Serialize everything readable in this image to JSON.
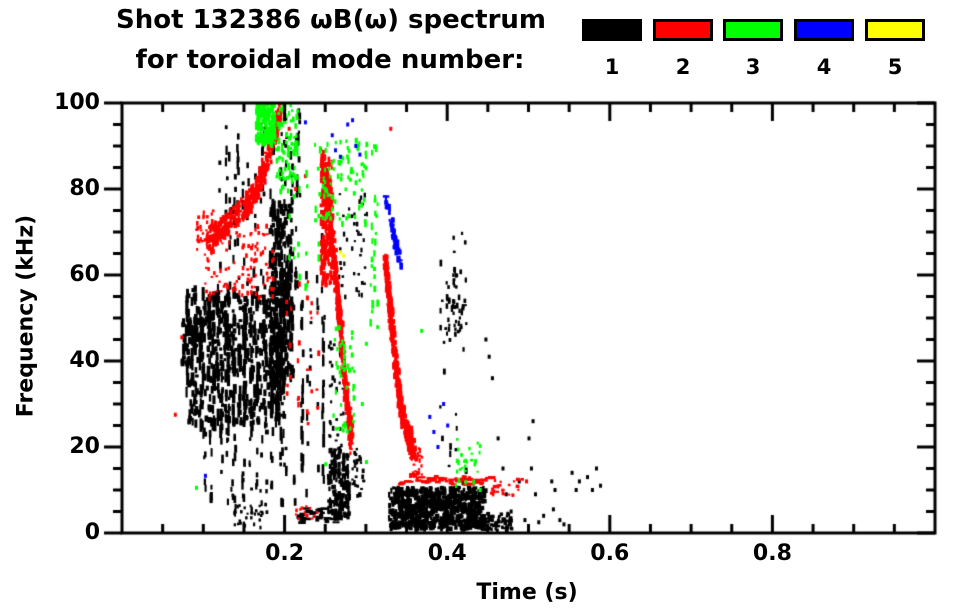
{
  "title": {
    "line1": "Shot 132386 ωB(ω) spectrum",
    "line2": "for toroidal mode number:"
  },
  "legend": {
    "modes": [
      {
        "label": "1",
        "color": "#000000"
      },
      {
        "label": "2",
        "color": "#ff0000"
      },
      {
        "label": "3",
        "color": "#00ff00"
      },
      {
        "label": "4",
        "color": "#0000ff"
      },
      {
        "label": "5",
        "color": "#ffff00"
      }
    ]
  },
  "axes": {
    "x_title": "Time (s)",
    "y_title": "Frequency (kHz)"
  },
  "chart_data": {
    "type": "scatter",
    "title": "Shot 132386 ωB(ω) spectrum for toroidal mode number: 1 2 3 4 5",
    "xlabel": "Time (s)",
    "ylabel": "Frequency (kHz)",
    "xlim": [
      0,
      1.0
    ],
    "ylim": [
      0,
      100
    ],
    "grid": false,
    "legend_position": "top-right",
    "x_major_ticks": [
      0.2,
      0.4,
      0.6,
      0.8
    ],
    "x_tick_labels": [
      "0.2",
      "0.4",
      "0.6",
      "0.8"
    ],
    "x_minor_step": 0.05,
    "y_major_ticks": [
      0,
      20,
      40,
      60,
      80,
      100
    ],
    "y_tick_labels": [
      "0",
      "20",
      "40",
      "60",
      "80",
      "100"
    ],
    "y_minor_step": 5,
    "series": [
      {
        "name": "1",
        "mode": 1,
        "color": "#000000",
        "description": "n=1 activity: dense broadband 25-100 kHz bursts t=0.08-0.25 s, low-frequency 2-11 kHz blob t=0.33-0.47 s, sparse specks to t=0.59 s"
      },
      {
        "name": "2",
        "mode": 2,
        "color": "#ff0000",
        "description": "n=2 activity: rising chirp 69->99 kHz t=0.10-0.19 s, falling chirps 87->20 kHz at t=0.25 s and 64->14 kHz at t=0.33 s, 12 kHz dashed line t=0.33-0.49 s"
      },
      {
        "name": "3",
        "mode": 3,
        "color": "#00ff00",
        "description": "n=3 activity: 90-100 kHz cluster near t=0.18 s, scattered 45-92 kHz t=0.20-0.32 s, low specks 11-25 kHz t=0.41-0.44 s"
      },
      {
        "name": "4",
        "mode": 4,
        "color": "#0000ff",
        "description": "n=4 activity: short falling trace 79->63 kHz t=0.32-0.34 s plus isolated specks"
      },
      {
        "name": "5",
        "mode": 5,
        "color": "#ffff00",
        "description": "n=5 activity: single speck near t=0.27 s, 65 kHz"
      }
    ],
    "features": [
      {
        "m": 1,
        "type": "specks",
        "t": [
          0.072,
          0.085
        ],
        "f": [
          40,
          50
        ],
        "n": 40,
        "w": [
          2,
          4
        ],
        "h": [
          3,
          7
        ]
      },
      {
        "m": 1,
        "type": "vstreaks",
        "t": [
          0.078,
          0.2
        ],
        "f": [
          24,
          58
        ],
        "cols": 24,
        "per": [
          10,
          20
        ],
        "dh": [
          4,
          14
        ],
        "w": [
          2,
          4
        ]
      },
      {
        "m": 1,
        "type": "specks",
        "t": [
          0.08,
          0.2
        ],
        "f": [
          26,
          56
        ],
        "n": 350,
        "w": [
          2,
          4
        ],
        "h": [
          3,
          8
        ]
      },
      {
        "m": 1,
        "type": "vstreaks",
        "t": [
          0.1,
          0.205
        ],
        "f": [
          5,
          26
        ],
        "cols": 14,
        "per": [
          4,
          8
        ],
        "dh": [
          3,
          9
        ],
        "w": [
          2,
          3
        ]
      },
      {
        "m": 1,
        "type": "vstreaks",
        "t": [
          0.115,
          0.215
        ],
        "f": [
          58,
          97
        ],
        "cols": 16,
        "per": [
          4,
          9
        ],
        "dh": [
          3,
          11
        ],
        "w": [
          2,
          3
        ]
      },
      {
        "m": 1,
        "type": "specks",
        "t": [
          0.18,
          0.208
        ],
        "f": [
          35,
          78
        ],
        "n": 330,
        "w": [
          2,
          4
        ],
        "h": [
          4,
          9
        ]
      },
      {
        "m": 1,
        "type": "vstreaks",
        "t": [
          0.205,
          0.25
        ],
        "f": [
          8,
          62
        ],
        "cols": 6,
        "per": [
          5,
          9
        ],
        "dh": [
          3,
          9
        ],
        "w": [
          2,
          3
        ]
      },
      {
        "m": 1,
        "type": "vstreaks",
        "t": [
          0.218,
          0.223
        ],
        "f": [
          4,
          56
        ],
        "cols": 1,
        "per": [
          12,
          16
        ],
        "dh": [
          6,
          14
        ],
        "w": [
          2,
          3
        ]
      },
      {
        "m": 1,
        "type": "vstreaks",
        "t": [
          0.244,
          0.249
        ],
        "f": [
          4,
          78
        ],
        "cols": 1,
        "per": [
          14,
          18
        ],
        "dh": [
          6,
          14
        ],
        "w": [
          2,
          3
        ]
      },
      {
        "m": 1,
        "type": "vstreaks",
        "t": [
          0.198,
          0.222
        ],
        "f": [
          78,
          100
        ],
        "cols": 4,
        "per": [
          4,
          8
        ],
        "dh": [
          3,
          8
        ],
        "w": [
          2,
          3
        ]
      },
      {
        "m": 1,
        "type": "specks",
        "t": [
          0.252,
          0.278
        ],
        "f": [
          4,
          20
        ],
        "n": 150,
        "w": [
          2,
          4
        ],
        "h": [
          3,
          7
        ]
      },
      {
        "m": 1,
        "type": "specks",
        "t": [
          0.282,
          0.296
        ],
        "f": [
          9,
          20
        ],
        "n": 30,
        "w": [
          2,
          3
        ],
        "h": [
          2,
          5
        ]
      },
      {
        "m": 1,
        "type": "specks",
        "t": [
          0.253,
          0.272
        ],
        "f": [
          20,
          46
        ],
        "n": 35,
        "w": [
          2,
          3
        ],
        "h": [
          2,
          5
        ]
      },
      {
        "m": 1,
        "type": "specks",
        "t": [
          0.265,
          0.3
        ],
        "f": [
          55,
          80
        ],
        "n": 40,
        "w": [
          2,
          3
        ],
        "h": [
          2,
          5
        ]
      },
      {
        "m": 1,
        "type": "specks",
        "t": [
          0.327,
          0.445
        ],
        "f": [
          1.5,
          11
        ],
        "n": 650,
        "w": [
          2,
          5
        ],
        "h": [
          3,
          6
        ]
      },
      {
        "m": 1,
        "type": "specks",
        "t": [
          0.44,
          0.478
        ],
        "f": [
          1,
          5
        ],
        "n": 60,
        "w": [
          2,
          4
        ],
        "h": [
          2,
          4
        ]
      },
      {
        "m": 1,
        "type": "vstreaks",
        "t": [
          0.388,
          0.425
        ],
        "f": [
          12,
          72
        ],
        "cols": 7,
        "per": [
          3,
          7
        ],
        "dh": [
          2,
          7
        ],
        "w": [
          2,
          3
        ]
      },
      {
        "m": 1,
        "type": "specks",
        "t": [
          0.398,
          0.418
        ],
        "f": [
          45,
          62
        ],
        "n": 40,
        "w": [
          2,
          3
        ],
        "h": [
          3,
          6
        ]
      },
      {
        "m": 1,
        "type": "hdash",
        "t": [
          0.214,
          0.263
        ],
        "f": [
          2.5,
          6
        ],
        "n": 40
      },
      {
        "m": 1,
        "type": "specks",
        "t": [
          0.135,
          0.178
        ],
        "f": [
          1.5,
          7
        ],
        "n": 30,
        "w": [
          2,
          3
        ],
        "h": [
          2,
          4
        ]
      },
      {
        "m": 1,
        "type": "pts",
        "pts": [
          [
            0.447,
            45
          ],
          [
            0.451,
            41
          ],
          [
            0.455,
            36
          ],
          [
            0.462,
            22
          ],
          [
            0.468,
            15
          ],
          [
            0.472,
            9
          ],
          [
            0.478,
            5
          ],
          [
            0.488,
            12
          ],
          [
            0.495,
            3
          ],
          [
            0.503,
            15
          ],
          [
            0.508,
            9
          ],
          [
            0.512,
            2.5
          ],
          [
            0.518,
            4
          ],
          [
            0.528,
            12
          ],
          [
            0.532,
            10
          ],
          [
            0.53,
            5.5
          ],
          [
            0.538,
            3
          ],
          [
            0.543,
            2
          ],
          [
            0.553,
            14
          ],
          [
            0.558,
            10
          ],
          [
            0.562,
            12
          ],
          [
            0.572,
            13
          ],
          [
            0.578,
            10
          ],
          [
            0.583,
            15
          ],
          [
            0.588,
            11
          ],
          [
            0.455,
            3
          ],
          [
            0.46,
            2
          ],
          [
            0.5,
            22
          ],
          [
            0.505,
            26
          ]
        ]
      },
      {
        "m": 2,
        "type": "chirp",
        "path": [
          [
            0.103,
            69
          ],
          [
            0.125,
            72
          ],
          [
            0.148,
            76
          ],
          [
            0.163,
            80
          ],
          [
            0.175,
            86
          ],
          [
            0.186,
            93
          ],
          [
            0.193,
            99
          ]
        ],
        "wk": 5,
        "n": 450
      },
      {
        "m": 2,
        "type": "specks",
        "t": [
          0.1,
          0.185
        ],
        "f": [
          55,
          72
        ],
        "n": 110,
        "w": [
          2,
          3
        ],
        "h": [
          2,
          5
        ]
      },
      {
        "m": 2,
        "type": "specks",
        "t": [
          0.09,
          0.115
        ],
        "f": [
          66,
          76
        ],
        "n": 35,
        "w": [
          2,
          3
        ],
        "h": [
          2,
          5
        ]
      },
      {
        "m": 2,
        "type": "chirp",
        "path": [
          [
            0.244,
            87
          ],
          [
            0.25,
            80
          ],
          [
            0.255,
            72
          ],
          [
            0.259,
            64
          ],
          [
            0.264,
            54
          ],
          [
            0.268,
            46
          ],
          [
            0.272,
            37
          ],
          [
            0.277,
            28
          ],
          [
            0.281,
            21
          ]
        ],
        "wk": 6,
        "n": 520
      },
      {
        "m": 2,
        "type": "specks",
        "t": [
          0.243,
          0.258
        ],
        "f": [
          58,
          88
        ],
        "n": 160,
        "w": [
          2,
          4
        ],
        "h": [
          3,
          7
        ]
      },
      {
        "m": 2,
        "type": "chirp",
        "path": [
          [
            0.322,
            64
          ],
          [
            0.326,
            57
          ],
          [
            0.33,
            49
          ],
          [
            0.334,
            41
          ],
          [
            0.338,
            34
          ],
          [
            0.344,
            28
          ],
          [
            0.351,
            23
          ],
          [
            0.357,
            20
          ]
        ],
        "wk": 5,
        "n": 430
      },
      {
        "m": 2,
        "type": "specks",
        "t": [
          0.353,
          0.368
        ],
        "f": [
          13,
          20
        ],
        "n": 35,
        "w": [
          2,
          3
        ],
        "h": [
          2,
          5
        ]
      },
      {
        "m": 2,
        "type": "hdash",
        "t": [
          0.335,
          0.452
        ],
        "f": [
          11.5,
          13.5
        ],
        "n": 50
      },
      {
        "m": 2,
        "type": "specks",
        "t": [
          0.452,
          0.492
        ],
        "f": [
          9,
          13
        ],
        "n": 22,
        "w": [
          2,
          4
        ],
        "h": [
          2,
          4
        ]
      },
      {
        "m": 2,
        "type": "vstreaks",
        "t": [
          0.195,
          0.245
        ],
        "f": [
          25,
          60
        ],
        "cols": 6,
        "per": [
          3,
          6
        ],
        "dh": [
          2,
          6
        ],
        "w": [
          2,
          3
        ]
      },
      {
        "m": 2,
        "type": "specks",
        "t": [
          0.21,
          0.24
        ],
        "f": [
          3.5,
          6.5
        ],
        "n": 12,
        "w": [
          2,
          3
        ],
        "h": [
          2,
          4
        ]
      },
      {
        "m": 2,
        "type": "pts",
        "pts": [
          [
            0.065,
            27.5
          ],
          [
            0.073,
            45.5
          ],
          [
            0.205,
            94
          ],
          [
            0.213,
            80
          ],
          [
            0.225,
            83
          ],
          [
            0.33,
            94
          ],
          [
            0.497,
            12
          ]
        ]
      },
      {
        "m": 3,
        "type": "specks",
        "t": [
          0.163,
          0.186
        ],
        "f": [
          91,
          101
        ],
        "n": 150,
        "w": [
          2,
          4
        ],
        "h": [
          3,
          7
        ]
      },
      {
        "m": 3,
        "type": "specks",
        "t": [
          0.186,
          0.215
        ],
        "f": [
          80,
          100
        ],
        "n": 80,
        "w": [
          2,
          3
        ],
        "h": [
          3,
          6
        ]
      },
      {
        "m": 3,
        "type": "vstreaks",
        "t": [
          0.2,
          0.245
        ],
        "f": [
          58,
          92
        ],
        "cols": 6,
        "per": [
          3,
          6
        ],
        "dh": [
          3,
          8
        ],
        "w": [
          2,
          3
        ]
      },
      {
        "m": 3,
        "type": "specks",
        "t": [
          0.245,
          0.3
        ],
        "f": [
          72,
          92
        ],
        "n": 80,
        "w": [
          2,
          3
        ],
        "h": [
          3,
          6
        ]
      },
      {
        "m": 3,
        "type": "vstreaks",
        "t": [
          0.302,
          0.315
        ],
        "f": [
          44,
          91
        ],
        "cols": 3,
        "per": [
          6,
          10
        ],
        "dh": [
          3,
          9
        ],
        "w": [
          2,
          3
        ]
      },
      {
        "m": 3,
        "type": "specks",
        "t": [
          0.258,
          0.285
        ],
        "f": [
          24,
          50
        ],
        "n": 45,
        "w": [
          2,
          3
        ],
        "h": [
          3,
          6
        ]
      },
      {
        "m": 3,
        "type": "specks",
        "t": [
          0.408,
          0.44
        ],
        "f": [
          11,
          25
        ],
        "n": 28,
        "w": [
          2,
          3
        ],
        "h": [
          2,
          5
        ]
      },
      {
        "m": 3,
        "type": "pts",
        "pts": [
          [
            0.091,
            10.5
          ],
          [
            0.25,
            16
          ],
          [
            0.3,
            16.5
          ],
          [
            0.295,
            30
          ],
          [
            0.3,
            44
          ],
          [
            0.368,
            47
          ],
          [
            0.44,
            10
          ]
        ]
      },
      {
        "m": 4,
        "type": "chirp",
        "path": [
          [
            0.322,
            79
          ],
          [
            0.327,
            75
          ],
          [
            0.332,
            70
          ],
          [
            0.337,
            66
          ],
          [
            0.341,
            63
          ]
        ],
        "wk": 3,
        "n": 55
      },
      {
        "m": 4,
        "type": "pts",
        "pts": [
          [
            0.225,
            95.5
          ],
          [
            0.258,
            92.5
          ],
          [
            0.262,
            89
          ],
          [
            0.268,
            87.5
          ],
          [
            0.277,
            95
          ],
          [
            0.283,
            96
          ],
          [
            0.287,
            90
          ],
          [
            0.292,
            88
          ],
          [
            0.102,
            13.3
          ],
          [
            0.378,
            27
          ],
          [
            0.383,
            23.5
          ],
          [
            0.388,
            20
          ],
          [
            0.395,
            30
          ],
          [
            0.4,
            25
          ]
        ]
      },
      {
        "m": 5,
        "type": "pts",
        "pts": [
          [
            0.268,
            65.3
          ],
          [
            0.272,
            64.5
          ]
        ]
      }
    ]
  }
}
